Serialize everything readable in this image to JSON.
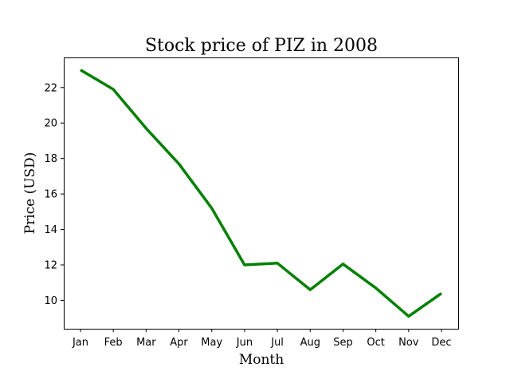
{
  "chart_data": {
    "type": "line",
    "title": "Stock price of PIZ in 2008",
    "xlabel": "Month",
    "ylabel": "Price (USD)",
    "categories": [
      "Jan",
      "Feb",
      "Mar",
      "Apr",
      "May",
      "Jun",
      "Jul",
      "Aug",
      "Sep",
      "Oct",
      "Nov",
      "Dec"
    ],
    "series": [
      {
        "values": [
          23.0,
          21.9,
          19.7,
          17.7,
          15.2,
          12.0,
          12.1,
          10.6,
          12.05,
          10.7,
          9.1,
          10.4
        ],
        "color": "#008000"
      }
    ],
    "ylim": [
      8.4,
      23.7
    ],
    "yticks": [
      10,
      12,
      14,
      16,
      18,
      20,
      22
    ],
    "grid": false,
    "legend": "none"
  }
}
